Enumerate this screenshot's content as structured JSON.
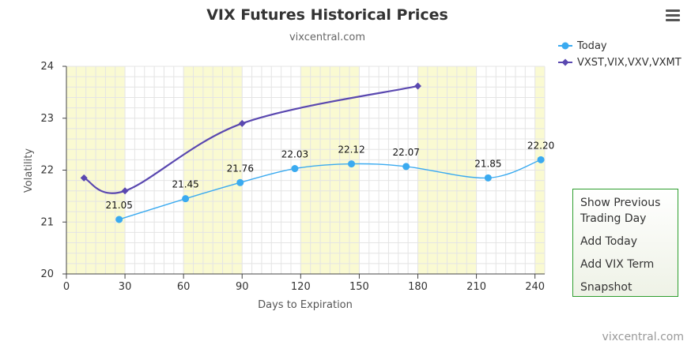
{
  "header": {
    "title": "VIX Futures Historical Prices",
    "subtitle": "vixcentral.com"
  },
  "credit": "vixcentral.com",
  "menu": {
    "icon": "hamburger-menu-icon",
    "items": [
      {
        "line1": "Show Previous",
        "line2": "Trading Day"
      },
      {
        "line1": "Add Today",
        "line2": ""
      },
      {
        "line1": "Add VIX Term",
        "line2": ""
      },
      {
        "line1": "Snapshot",
        "line2": ""
      }
    ]
  },
  "chart_data": {
    "type": "line",
    "title": "VIX Futures Historical Prices",
    "subtitle": "vixcentral.com",
    "xlabel": "Days to Expiration",
    "ylabel": "Volatility",
    "xlim": [
      0,
      245
    ],
    "ylim": [
      20,
      24
    ],
    "x_ticks": [
      0,
      30,
      60,
      90,
      120,
      150,
      180,
      210,
      240
    ],
    "y_ticks": [
      20,
      21,
      22,
      23,
      24
    ],
    "grid": true,
    "band_color": "#fafad2",
    "bands": [
      [
        0,
        30
      ],
      [
        60,
        90
      ],
      [
        120,
        150
      ],
      [
        180,
        210
      ],
      [
        240,
        245
      ]
    ],
    "legend_position": "top-right",
    "series": [
      {
        "name": "Today",
        "color": "#3aaaf0",
        "marker": "circle",
        "x": [
          27,
          61,
          89,
          117,
          146,
          174,
          216,
          243
        ],
        "y": [
          21.05,
          21.45,
          21.76,
          22.03,
          22.12,
          22.07,
          21.85,
          22.2
        ],
        "labels": [
          "21.05",
          "21.45",
          "21.76",
          "22.03",
          "22.12",
          "22.07",
          "21.85",
          "22.20"
        ]
      },
      {
        "name": "VXST,VIX,VXV,VXMT",
        "color": "#5a48b0",
        "marker": "diamond",
        "x": [
          9,
          30,
          90,
          180
        ],
        "y": [
          21.85,
          21.6,
          22.9,
          23.62
        ],
        "labels": []
      }
    ]
  }
}
